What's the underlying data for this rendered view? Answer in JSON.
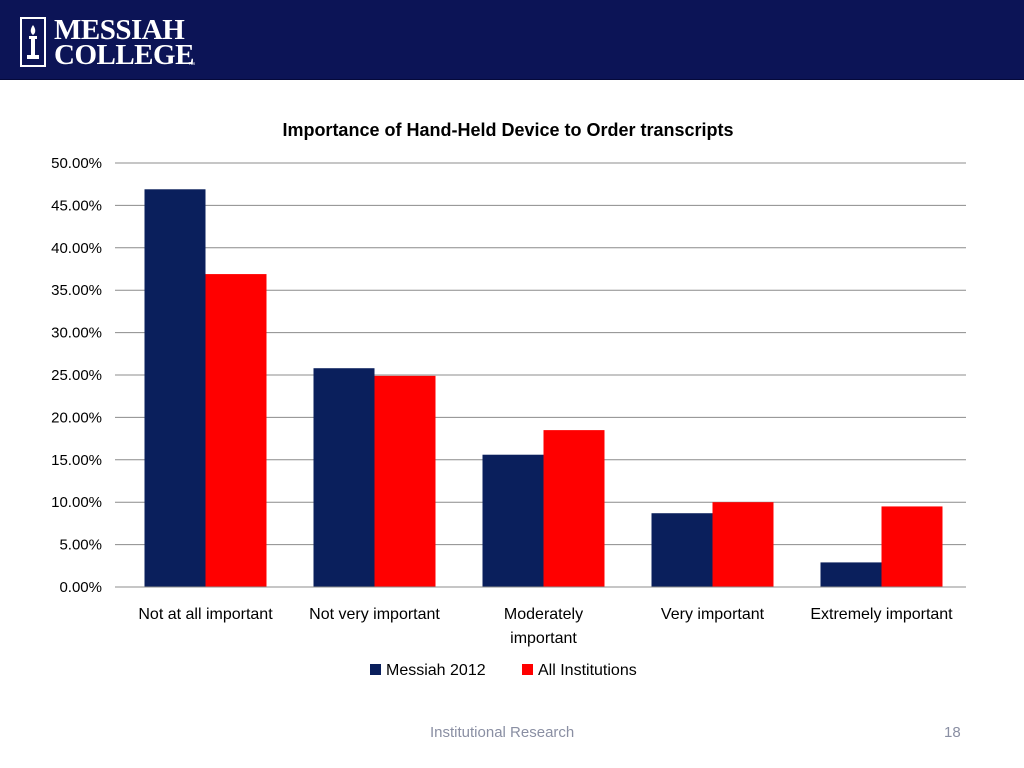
{
  "header": {
    "logo_line1": "MESSIAH",
    "logo_line2": "COLLEGE",
    "logo_tm": "™",
    "background_color": "#0c1456"
  },
  "footer": {
    "text": "Institutional Research",
    "page_number": "18"
  },
  "chart_data": {
    "type": "bar",
    "title": "Importance of Hand-Held Device to Order transcripts",
    "xlabel": "",
    "ylabel": "",
    "ylim": [
      0,
      0.5
    ],
    "y_ticks": [
      "0.00%",
      "5.00%",
      "10.00%",
      "15.00%",
      "20.00%",
      "25.00%",
      "30.00%",
      "35.00%",
      "40.00%",
      "45.00%",
      "50.00%"
    ],
    "categories": [
      [
        "Not at all important"
      ],
      [
        "Not very important"
      ],
      [
        "Moderately",
        "important"
      ],
      [
        "Very important"
      ],
      [
        "Extremely important"
      ]
    ],
    "series": [
      {
        "name": "Messiah 2012",
        "color": "#0a1f5c",
        "values": [
          0.469,
          0.258,
          0.156,
          0.087,
          0.029
        ]
      },
      {
        "name": "All Institutions",
        "color": "#ff0000",
        "values": [
          0.369,
          0.249,
          0.185,
          0.1,
          0.095
        ]
      }
    ],
    "grid": true,
    "legend_position": "bottom"
  }
}
